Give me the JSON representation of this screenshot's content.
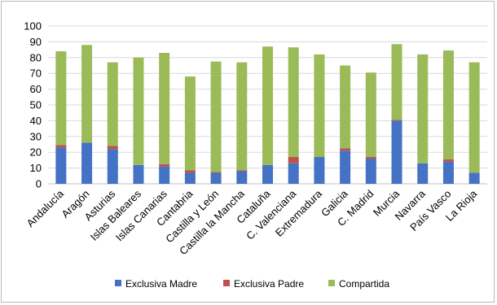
{
  "chart_data": {
    "type": "bar",
    "stacked": true,
    "title": "",
    "xlabel": "",
    "ylabel": "",
    "ylim": [
      0,
      100
    ],
    "yticks": [
      0,
      10,
      20,
      30,
      40,
      50,
      60,
      70,
      80,
      90,
      100
    ],
    "grid": "horizontal",
    "legend": "bottom",
    "categories": [
      "Andalucía",
      "Aragón",
      "Asturias",
      "Islas Baleares",
      "Islas Canarias",
      "Cantabria",
      "Castilla y León",
      "Castilla la Mancha",
      "Cataluña",
      "C. Valenciana",
      "Extremadura",
      "Galicia",
      "C. Madrid",
      "Murcia",
      "Navarra",
      "País Vasco",
      "La Rioja"
    ],
    "series": [
      {
        "name": "Exclusiva Madre",
        "color": "#4472c4",
        "values": [
          23,
          26,
          22,
          12,
          11,
          7,
          7,
          8,
          12,
          13,
          17,
          21,
          16,
          40,
          13,
          14,
          7
        ]
      },
      {
        "name": "Exclusiva Padre",
        "color": "#c0504d",
        "values": [
          1.5,
          0,
          2,
          0,
          1.5,
          1.5,
          0.5,
          0.5,
          0,
          4,
          0,
          1.5,
          1,
          0.5,
          0,
          1.5,
          0
        ]
      },
      {
        "name": "Compartida",
        "color": "#9bbb59",
        "values": [
          59.5,
          62,
          53,
          68,
          70.5,
          59.5,
          70,
          68.5,
          75,
          69.5,
          65,
          52.5,
          53.5,
          48,
          69,
          69,
          70
        ]
      }
    ]
  }
}
